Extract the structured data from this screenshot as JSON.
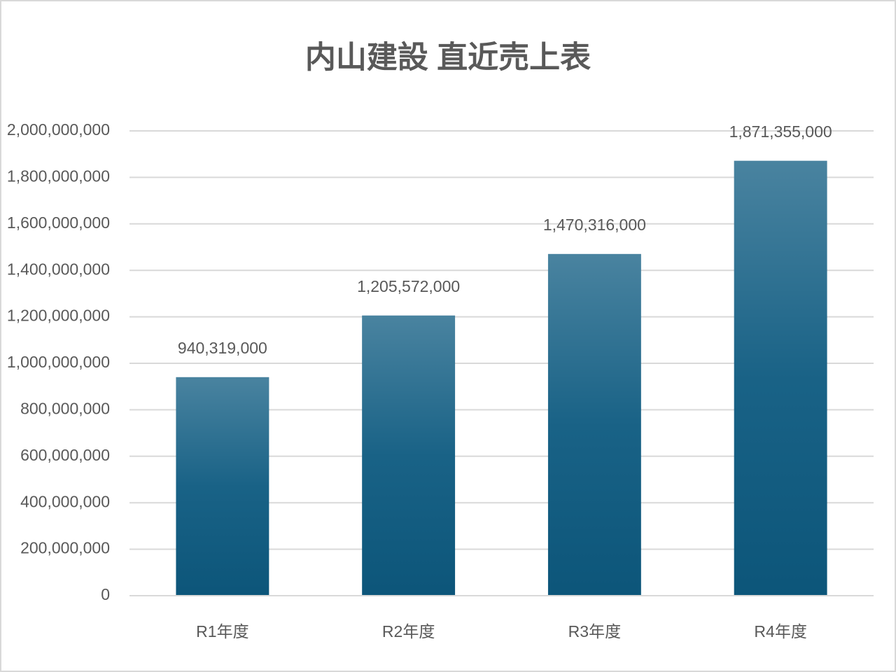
{
  "chart_data": {
    "type": "bar",
    "title": "内山建設 直近売上表",
    "categories": [
      "R1年度",
      "R2年度",
      "R3年度",
      "R4年度"
    ],
    "values": [
      940319000,
      1205572000,
      1470316000,
      1871355000
    ],
    "value_labels": [
      "940,319,000",
      "1,205,572,000",
      "1,470,316,000",
      "1,871,355,000"
    ],
    "color": "#0d5a80",
    "ylim": [
      0,
      2000000000
    ],
    "yticks": [
      0,
      {
        "value": 200000000,
        "label": "200,000,000"
      },
      {
        "value": 400000000,
        "label": "400,000,000"
      },
      {
        "value": 600000000,
        "label": "600,000,000"
      },
      {
        "value": 800000000,
        "label": "800,000,000"
      },
      {
        "value": 1000000000,
        "label": "1,000,000,000"
      },
      {
        "value": 1200000000,
        "label": "1,200,000,000"
      },
      {
        "value": 1400000000,
        "label": "1,400,000,000"
      },
      {
        "value": 1600000000,
        "label": "1,600,000,000"
      },
      {
        "value": 1800000000,
        "label": "1,800,000,000"
      },
      {
        "value": 2000000000,
        "label": "2,000,000,000"
      }
    ],
    "grid": true
  }
}
